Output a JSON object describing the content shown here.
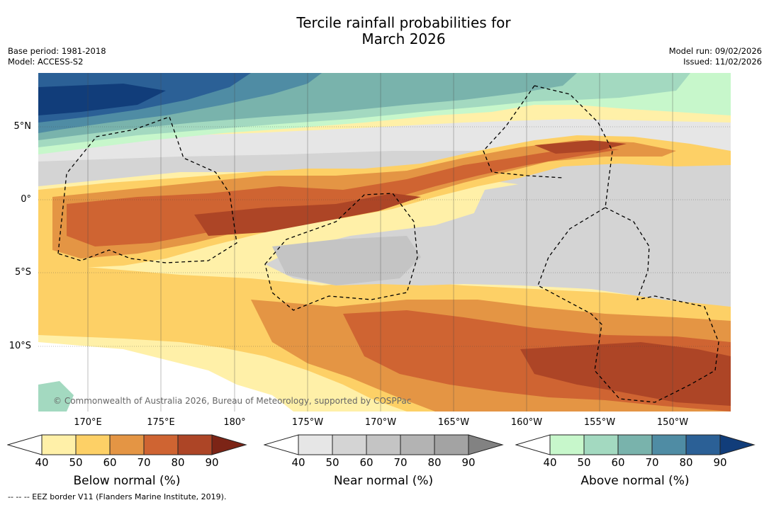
{
  "header": {
    "title_line1": "Tercile rainfall probabilities for",
    "title_line2": "March 2026",
    "base_period": "Base period: 1981-2018",
    "model": "Model: ACCESS-S2",
    "model_run": "Model run: 09/02/2026",
    "issued": "Issued: 11/02/2026"
  },
  "map": {
    "lat_labels": [
      "5°N",
      "0°",
      "5°S",
      "10°S"
    ],
    "lon_labels": [
      "170°E",
      "175°E",
      "180°",
      "175°W",
      "170°W",
      "165°W",
      "160°W",
      "155°W",
      "150°W"
    ],
    "credit": "© Commonwealth of Australia 2026, Bureau of Meteorology, supported by COSPPac"
  },
  "legends": {
    "below": {
      "label": "Below normal (%)",
      "ticks": [
        "40",
        "50",
        "60",
        "70",
        "80",
        "90"
      ],
      "colors": [
        "#fff0a8",
        "#fdd066",
        "#e49544",
        "#cf6432",
        "#ad4526",
        "#7c2416"
      ]
    },
    "near": {
      "label": "Near normal (%)",
      "ticks": [
        "40",
        "50",
        "60",
        "70",
        "80",
        "90"
      ],
      "colors": [
        "#e6e6e6",
        "#d4d4d4",
        "#c4c4c4",
        "#b3b3b3",
        "#a3a3a3",
        "#828282"
      ]
    },
    "above": {
      "label": "Above normal (%)",
      "ticks": [
        "40",
        "50",
        "60",
        "70",
        "80",
        "90"
      ],
      "colors": [
        "#c7f7cb",
        "#a3d9c0",
        "#79b3ac",
        "#4f8ca4",
        "#2b6096",
        "#113d7a"
      ]
    }
  },
  "footer": {
    "eez_note": "--  --  -- EEZ border V11 (Flanders Marine Institute, 2019)."
  }
}
